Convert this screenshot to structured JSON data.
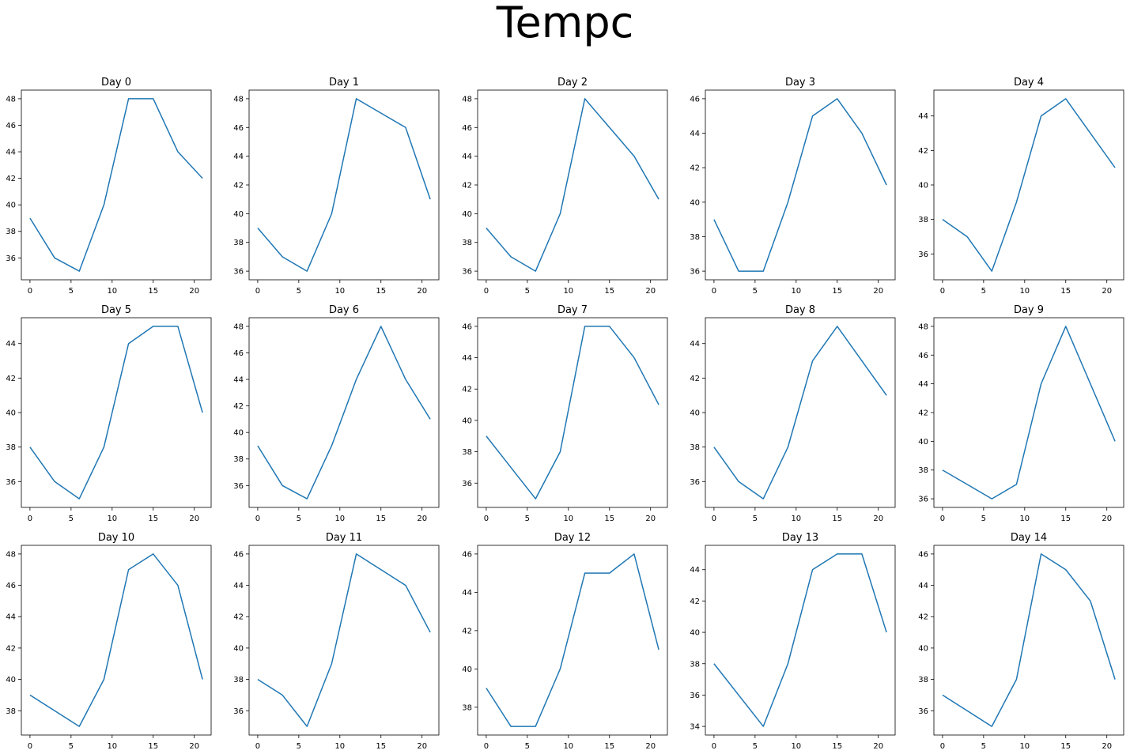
{
  "figure": {
    "title": "Tempc"
  },
  "style": {
    "line_color": "#1f77b4"
  },
  "chart_data": [
    {
      "type": "line",
      "title": "Day 0",
      "x": [
        0,
        3,
        6,
        9,
        12,
        15,
        18,
        21
      ],
      "y": [
        39,
        36,
        35,
        40,
        48,
        48,
        44,
        42
      ],
      "ylim": [
        34.35,
        48.65
      ],
      "xlim": [
        -1.05,
        22.05
      ],
      "xticks": [
        0,
        5,
        10,
        15,
        20
      ],
      "yticks": [
        36,
        38,
        40,
        42,
        44,
        46,
        48
      ]
    },
    {
      "type": "line",
      "title": "Day 1",
      "x": [
        0,
        3,
        6,
        9,
        12,
        15,
        18,
        21
      ],
      "y": [
        39,
        37,
        36,
        40,
        48,
        47,
        46,
        41
      ],
      "ylim": [
        35.4,
        48.6
      ],
      "xlim": [
        -1.05,
        22.05
      ],
      "xticks": [
        0,
        5,
        10,
        15,
        20
      ],
      "yticks": [
        36,
        38,
        40,
        42,
        44,
        46,
        48
      ]
    },
    {
      "type": "line",
      "title": "Day 2",
      "x": [
        0,
        3,
        6,
        9,
        12,
        15,
        18,
        21
      ],
      "y": [
        39,
        37,
        36,
        40,
        48,
        46,
        44,
        41
      ],
      "ylim": [
        35.4,
        48.6
      ],
      "xlim": [
        -1.05,
        22.05
      ],
      "xticks": [
        0,
        5,
        10,
        15,
        20
      ],
      "yticks": [
        36,
        38,
        40,
        42,
        44,
        46,
        48
      ]
    },
    {
      "type": "line",
      "title": "Day 3",
      "x": [
        0,
        3,
        6,
        9,
        12,
        15,
        18,
        21
      ],
      "y": [
        39,
        36,
        36,
        40,
        45,
        46,
        44,
        41
      ],
      "ylim": [
        35.5,
        46.5
      ],
      "xlim": [
        -1.05,
        22.05
      ],
      "xticks": [
        0,
        5,
        10,
        15,
        20
      ],
      "yticks": [
        36,
        38,
        40,
        42,
        44,
        46
      ]
    },
    {
      "type": "line",
      "title": "Day 4",
      "x": [
        0,
        3,
        6,
        9,
        12,
        15,
        18,
        21
      ],
      "y": [
        38,
        37,
        35,
        39,
        44,
        45,
        43,
        41
      ],
      "ylim": [
        34.5,
        45.5
      ],
      "xlim": [
        -1.05,
        22.05
      ],
      "xticks": [
        0,
        5,
        10,
        15,
        20
      ],
      "yticks": [
        36,
        38,
        40,
        42,
        44
      ]
    },
    {
      "type": "line",
      "title": "Day 5",
      "x": [
        0,
        3,
        6,
        9,
        12,
        15,
        18,
        21
      ],
      "y": [
        38,
        36,
        35,
        38,
        44,
        45,
        45,
        40
      ],
      "ylim": [
        34.5,
        45.5
      ],
      "xlim": [
        -1.05,
        22.05
      ],
      "xticks": [
        0,
        5,
        10,
        15,
        20
      ],
      "yticks": [
        36,
        38,
        40,
        42,
        44
      ]
    },
    {
      "type": "line",
      "title": "Day 6",
      "x": [
        0,
        3,
        6,
        9,
        12,
        15,
        18,
        21
      ],
      "y": [
        39,
        36,
        35,
        39,
        44,
        48,
        44,
        41
      ],
      "ylim": [
        34.35,
        48.65
      ],
      "xlim": [
        -1.05,
        22.05
      ],
      "xticks": [
        0,
        5,
        10,
        15,
        20
      ],
      "yticks": [
        36,
        38,
        40,
        42,
        44,
        46,
        48
      ]
    },
    {
      "type": "line",
      "title": "Day 7",
      "x": [
        0,
        3,
        6,
        9,
        12,
        15,
        18,
        21
      ],
      "y": [
        39,
        37,
        35,
        38,
        46,
        46,
        44,
        41
      ],
      "ylim": [
        34.45,
        46.55
      ],
      "xlim": [
        -1.05,
        22.05
      ],
      "xticks": [
        0,
        5,
        10,
        15,
        20
      ],
      "yticks": [
        36,
        38,
        40,
        42,
        44,
        46
      ]
    },
    {
      "type": "line",
      "title": "Day 8",
      "x": [
        0,
        3,
        6,
        9,
        12,
        15,
        18,
        21
      ],
      "y": [
        38,
        36,
        35,
        38,
        43,
        45,
        43,
        41
      ],
      "ylim": [
        34.5,
        45.5
      ],
      "xlim": [
        -1.05,
        22.05
      ],
      "xticks": [
        0,
        5,
        10,
        15,
        20
      ],
      "yticks": [
        36,
        38,
        40,
        42,
        44
      ]
    },
    {
      "type": "line",
      "title": "Day 9",
      "x": [
        0,
        3,
        6,
        9,
        12,
        15,
        18,
        21
      ],
      "y": [
        38,
        37,
        36,
        37,
        44,
        48,
        44,
        40
      ],
      "ylim": [
        35.4,
        48.6
      ],
      "xlim": [
        -1.05,
        22.05
      ],
      "xticks": [
        0,
        5,
        10,
        15,
        20
      ],
      "yticks": [
        36,
        38,
        40,
        42,
        44,
        46,
        48
      ]
    },
    {
      "type": "line",
      "title": "Day 10",
      "x": [
        0,
        3,
        6,
        9,
        12,
        15,
        18,
        21
      ],
      "y": [
        39,
        38,
        37,
        40,
        47,
        48,
        46,
        40
      ],
      "ylim": [
        36.45,
        48.55
      ],
      "xlim": [
        -1.05,
        22.05
      ],
      "xticks": [
        0,
        5,
        10,
        15,
        20
      ],
      "yticks": [
        38,
        40,
        42,
        44,
        46,
        48
      ]
    },
    {
      "type": "line",
      "title": "Day 11",
      "x": [
        0,
        3,
        6,
        9,
        12,
        15,
        18,
        21
      ],
      "y": [
        38,
        37,
        35,
        39,
        46,
        45,
        44,
        41
      ],
      "ylim": [
        34.45,
        46.55
      ],
      "xlim": [
        -1.05,
        22.05
      ],
      "xticks": [
        0,
        5,
        10,
        15,
        20
      ],
      "yticks": [
        36,
        38,
        40,
        42,
        44,
        46
      ]
    },
    {
      "type": "line",
      "title": "Day 12",
      "x": [
        0,
        3,
        6,
        9,
        12,
        15,
        18,
        21
      ],
      "y": [
        39,
        37,
        37,
        40,
        45,
        45,
        46,
        41
      ],
      "ylim": [
        36.55,
        46.45
      ],
      "xlim": [
        -1.05,
        22.05
      ],
      "xticks": [
        0,
        5,
        10,
        15,
        20
      ],
      "yticks": [
        38,
        40,
        42,
        44,
        46
      ]
    },
    {
      "type": "line",
      "title": "Day 13",
      "x": [
        0,
        3,
        6,
        9,
        12,
        15,
        18,
        21
      ],
      "y": [
        38,
        36,
        34,
        38,
        44,
        45,
        45,
        40
      ],
      "ylim": [
        33.45,
        45.55
      ],
      "xlim": [
        -1.05,
        22.05
      ],
      "xticks": [
        0,
        5,
        10,
        15,
        20
      ],
      "yticks": [
        34,
        36,
        38,
        40,
        42,
        44
      ]
    },
    {
      "type": "line",
      "title": "Day 14",
      "x": [
        0,
        3,
        6,
        9,
        12,
        15,
        18,
        21
      ],
      "y": [
        37,
        36,
        35,
        38,
        46,
        45,
        43,
        38
      ],
      "ylim": [
        34.45,
        46.55
      ],
      "xlim": [
        -1.05,
        22.05
      ],
      "xticks": [
        0,
        5,
        10,
        15,
        20
      ],
      "yticks": [
        36,
        38,
        40,
        42,
        44,
        46
      ]
    }
  ]
}
